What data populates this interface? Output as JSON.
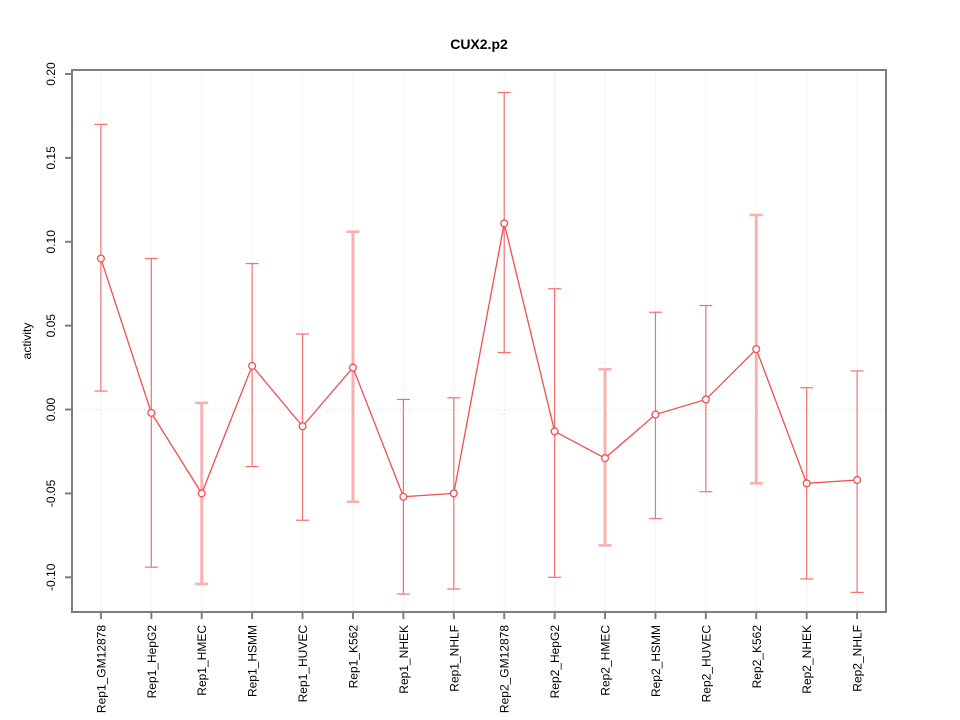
{
  "figure": {
    "title": "CUX2.p2",
    "ylabel": "activity"
  },
  "chart_data": {
    "type": "line",
    "title": "CUX2.p2",
    "xlabel": "",
    "ylabel": "activity",
    "categories": [
      "Rep1_GM12878",
      "Rep1_HepG2",
      "Rep1_HMEC",
      "Rep1_HSMM",
      "Rep1_HUVEC",
      "Rep1_K562",
      "Rep1_NHEK",
      "Rep1_NHLF",
      "Rep2_GM12878",
      "Rep2_HepG2",
      "Rep2_HMEC",
      "Rep2_HSMM",
      "Rep2_HUVEC",
      "Rep2_K562",
      "Rep2_NHEK",
      "Rep2_NHLF"
    ],
    "series": [
      {
        "name": "activity",
        "values": [
          0.09,
          -0.002,
          -0.05,
          0.026,
          -0.01,
          0.025,
          -0.052,
          -0.05,
          0.111,
          -0.013,
          -0.029,
          -0.003,
          0.006,
          0.036,
          -0.044,
          -0.042
        ]
      }
    ],
    "error_bars": {
      "low": [
        0.011,
        -0.094,
        -0.104,
        -0.034,
        -0.066,
        -0.055,
        -0.11,
        -0.107,
        0.034,
        -0.1,
        -0.081,
        -0.065,
        -0.049,
        -0.044,
        -0.101,
        -0.109
      ],
      "high": [
        0.17,
        0.09,
        0.004,
        0.087,
        0.045,
        0.106,
        0.006,
        0.007,
        0.189,
        0.072,
        0.024,
        0.058,
        0.062,
        0.116,
        0.013,
        0.023
      ]
    },
    "thick_bar_categories": [
      "Rep1_HMEC",
      "Rep1_K562",
      "Rep2_HMEC",
      "Rep2_K562"
    ],
    "yticks": [
      {
        "value": 0.2,
        "label": "0.20"
      },
      {
        "value": 0.15,
        "label": "0.15"
      },
      {
        "value": 0.1,
        "label": "0.10"
      },
      {
        "value": 0.05,
        "label": "0.05"
      },
      {
        "value": 0.0,
        "label": "0.00"
      },
      {
        "value": -0.05,
        "label": "-0.05"
      },
      {
        "value": -0.1,
        "label": "-0.10"
      }
    ],
    "ylim": [
      -0.1207,
      0.2024
    ],
    "grid": {
      "vertical_dotted_per_category": true,
      "dotted_zero_line": true,
      "legend": "none"
    },
    "marker": "open-circle",
    "colors": {
      "series": "#f04f4f",
      "error_bar": "#f47070",
      "error_bar_thick": "#f8b0b0",
      "grid": "#d9d9d9",
      "zero_line": "#dedede",
      "axis": "#7d7d7d",
      "text": "#000000"
    }
  }
}
